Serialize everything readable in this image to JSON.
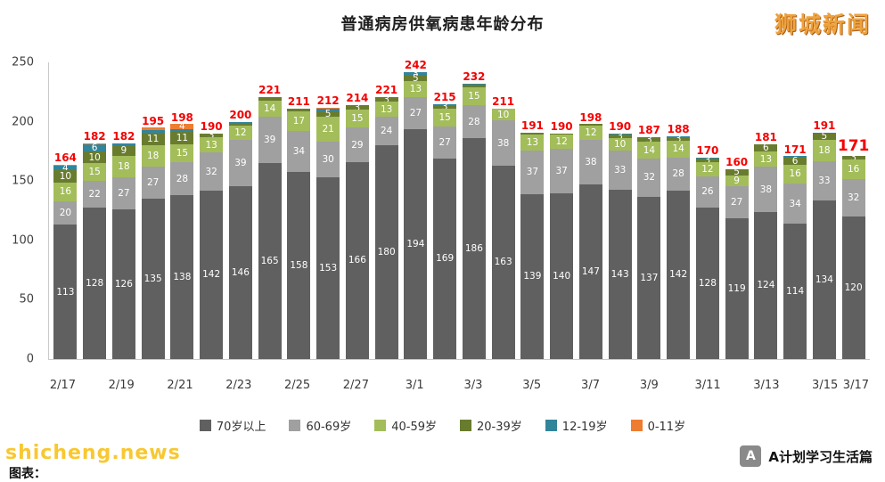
{
  "title": "普通病房供氧病患年龄分布",
  "watermarks": {
    "top_right": "狮城新闻",
    "bottom_left": "shicheng.news"
  },
  "caption": "图表：",
  "credit": "A计划学习生活篇",
  "colors": {
    "total_label": "#f40000",
    "title_text": "#1f1f1f",
    "axis_text": "#3f3f3f",
    "watermark_orange": "#efa23c",
    "watermark_yellow": "#f8c832"
  },
  "chart_data": {
    "type": "bar",
    "stacked": true,
    "title": "普通病房供氧病患年龄分布",
    "categories": [
      "2/17",
      "2/18",
      "2/19",
      "2/20",
      "2/21",
      "2/22",
      "2/23",
      "2/24",
      "2/25",
      "2/26",
      "2/27",
      "2/28",
      "3/1",
      "3/2",
      "3/3",
      "3/4",
      "3/5",
      "3/6",
      "3/7",
      "3/8",
      "3/9",
      "3/10",
      "3/11",
      "3/12",
      "3/13",
      "3/14",
      "3/15",
      "3/16"
    ],
    "x_tick_labels": [
      "2/17",
      "2/19",
      "2/21",
      "2/23",
      "2/25",
      "2/27",
      "3/1",
      "3/3",
      "3/5",
      "3/7",
      "3/9",
      "3/11",
      "3/13",
      "3/15",
      "3/17"
    ],
    "ylim": [
      0,
      250
    ],
    "yticks": [
      0,
      50,
      100,
      150,
      200,
      250
    ],
    "grid": false,
    "legend_position": "bottom",
    "totals": [
      164,
      182,
      182,
      195,
      198,
      190,
      200,
      221,
      211,
      212,
      214,
      221,
      242,
      215,
      232,
      211,
      191,
      190,
      198,
      190,
      187,
      188,
      170,
      160,
      181,
      171,
      191,
      171
    ],
    "emphasized_last_total": true,
    "series": [
      {
        "name": "70岁以上",
        "color": "#606060",
        "values": [
          113,
          128,
          126,
          135,
          138,
          142,
          146,
          165,
          158,
          153,
          166,
          180,
          194,
          169,
          186,
          163,
          139,
          140,
          147,
          143,
          137,
          142,
          128,
          119,
          124,
          114,
          134,
          120
        ]
      },
      {
        "name": "60-69岁",
        "color": "#a0a0a0",
        "values": [
          20,
          22,
          27,
          27,
          28,
          32,
          39,
          39,
          34,
          30,
          29,
          24,
          27,
          27,
          28,
          38,
          37,
          37,
          38,
          33,
          32,
          28,
          26,
          27,
          38,
          34,
          33,
          32
        ]
      },
      {
        "name": "40-59岁",
        "color": "#a3bd5a",
        "values": [
          16,
          15,
          18,
          18,
          15,
          13,
          12,
          14,
          17,
          21,
          15,
          13,
          13,
          15,
          15,
          10,
          13,
          12,
          12,
          10,
          14,
          14,
          12,
          9,
          13,
          16,
          18,
          16
        ]
      },
      {
        "name": "20-39岁",
        "color": "#697c2e",
        "values": [
          10,
          10,
          9,
          11,
          11,
          3,
          2,
          2,
          2,
          5,
          3,
          3,
          5,
          3,
          2,
          0,
          2,
          1,
          1,
          3,
          3,
          3,
          3,
          5,
          6,
          6,
          5,
          3
        ]
      },
      {
        "name": "12-19岁",
        "color": "#31859b",
        "values": [
          4,
          6,
          2,
          2,
          2,
          0,
          1,
          1,
          0,
          2,
          1,
          1,
          3,
          1,
          1,
          0,
          0,
          0,
          0,
          1,
          1,
          1,
          1,
          0,
          0,
          1,
          1,
          0
        ]
      },
      {
        "name": "0-11岁",
        "color": "#ed7d31",
        "values": [
          1,
          1,
          0,
          2,
          4,
          0,
          0,
          0,
          0,
          1,
          0,
          0,
          0,
          0,
          0,
          0,
          0,
          0,
          0,
          0,
          0,
          0,
          0,
          0,
          0,
          0,
          0,
          0
        ]
      }
    ]
  }
}
